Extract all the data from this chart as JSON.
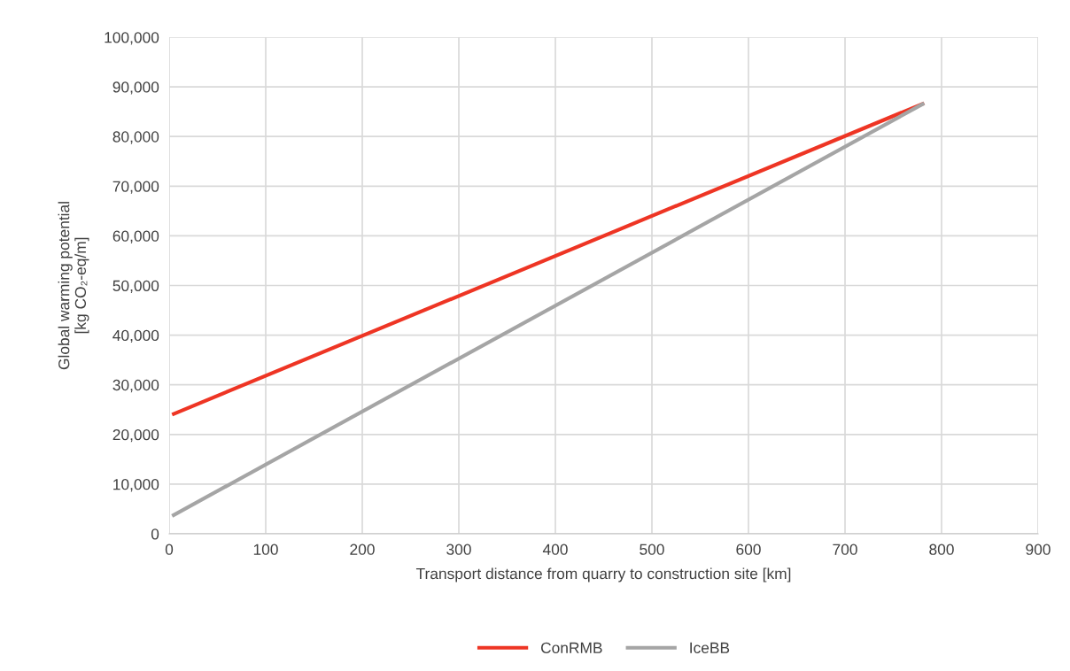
{
  "chart_data": {
    "type": "line",
    "xlabel": "Transport distance from quarry to construction site [km]",
    "ylabel": "Global warming potential\n[kg CO₂-eq/m]",
    "x": [
      3,
      782
    ],
    "series": [
      {
        "name": "ConRMB",
        "color": "#ee3524",
        "values": [
          24000,
          86700
        ]
      },
      {
        "name": "IceBB",
        "color": "#a5a5a5",
        "values": [
          3600,
          86700
        ]
      }
    ],
    "xlim": [
      0,
      900
    ],
    "xticks": [
      0,
      100,
      200,
      300,
      400,
      500,
      600,
      700,
      800,
      900
    ],
    "ylim": [
      0,
      100000
    ],
    "yticks": [
      {
        "value": 0,
        "label": "0"
      },
      {
        "value": 10000,
        "label": "10,000"
      },
      {
        "value": 20000,
        "label": "20,000"
      },
      {
        "value": 30000,
        "label": "30,000"
      },
      {
        "value": 40000,
        "label": "40,000"
      },
      {
        "value": 50000,
        "label": "50,000"
      },
      {
        "value": 60000,
        "label": "60,000"
      },
      {
        "value": 70000,
        "label": "70,000"
      },
      {
        "value": 80000,
        "label": "80,000"
      },
      {
        "value": 90000,
        "label": "90,000"
      },
      {
        "value": 100000,
        "label": "100,000"
      }
    ],
    "grid": true,
    "legend": "bottom",
    "marker": "none",
    "line_style": "solid"
  }
}
